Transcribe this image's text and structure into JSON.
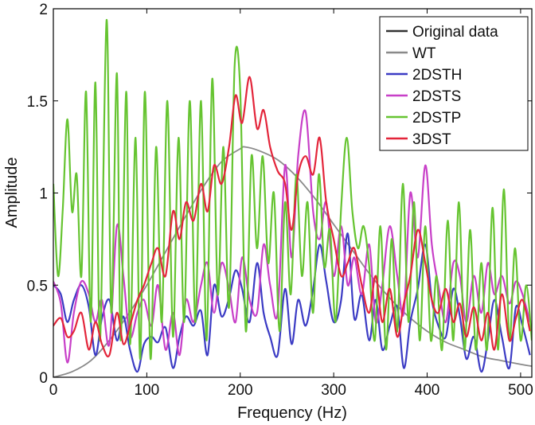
{
  "chart_data": {
    "type": "line",
    "title": "",
    "xlabel": "Frequency (Hz)",
    "ylabel": "Amplitude",
    "xlim": [
      0,
      512
    ],
    "ylim": [
      0,
      2
    ],
    "xticks": [
      0,
      100,
      200,
      300,
      400,
      500
    ],
    "yticks": [
      0,
      0.5,
      1,
      1.5,
      2
    ],
    "ytick_labels": [
      "0",
      "0.5",
      "1",
      "1.5",
      "2"
    ],
    "grid": false,
    "legend_position": "top-right",
    "series": [
      {
        "name": "Original data",
        "color": "#333333",
        "x": [],
        "y": []
      },
      {
        "name": "WT",
        "color": "#8a8a8a",
        "x": [
          0,
          20,
          40,
          60,
          80,
          100,
          120,
          140,
          160,
          180,
          200,
          205,
          220,
          240,
          260,
          280,
          300,
          320,
          340,
          360,
          380,
          400,
          420,
          440,
          460,
          480,
          500,
          512
        ],
        "y": [
          0.0,
          0.03,
          0.09,
          0.2,
          0.34,
          0.5,
          0.68,
          0.86,
          1.03,
          1.17,
          1.24,
          1.25,
          1.23,
          1.18,
          1.09,
          0.97,
          0.83,
          0.69,
          0.55,
          0.43,
          0.33,
          0.25,
          0.19,
          0.15,
          0.11,
          0.09,
          0.07,
          0.06
        ]
      },
      {
        "name": "2DSTH",
        "color": "#3b3bc4",
        "x": [
          0,
          8,
          15,
          22,
          30,
          38,
          45,
          52,
          60,
          68,
          75,
          82,
          90,
          97,
          105,
          112,
          120,
          128,
          135,
          142,
          150,
          158,
          165,
          172,
          180,
          188,
          195,
          202,
          210,
          218,
          225,
          232,
          240,
          248,
          255,
          262,
          270,
          278,
          285,
          292,
          300,
          308,
          315,
          322,
          330,
          338,
          345,
          352,
          360,
          368,
          375,
          382,
          390,
          398,
          405,
          412,
          420,
          428,
          435,
          442,
          450,
          458,
          465,
          472,
          480,
          488,
          495,
          502,
          510
        ],
        "y": [
          0.5,
          0.45,
          0.3,
          0.42,
          0.5,
          0.38,
          0.12,
          0.32,
          0.42,
          0.2,
          0.33,
          0.15,
          0.03,
          0.18,
          0.22,
          0.19,
          0.27,
          0.05,
          0.22,
          0.33,
          0.28,
          0.36,
          0.12,
          0.5,
          0.33,
          0.43,
          0.58,
          0.48,
          0.3,
          0.62,
          0.35,
          0.22,
          0.12,
          0.48,
          0.18,
          0.42,
          0.28,
          0.48,
          0.72,
          0.52,
          0.3,
          0.42,
          0.78,
          0.32,
          0.45,
          0.2,
          0.42,
          0.15,
          0.28,
          0.38,
          0.05,
          0.3,
          0.48,
          0.72,
          0.42,
          0.28,
          0.22,
          0.48,
          0.33,
          0.1,
          0.22,
          0.03,
          0.2,
          0.42,
          0.22,
          0.05,
          0.38,
          0.28,
          0.12
        ]
      },
      {
        "name": "2DSTS",
        "color": "#c840c8",
        "x": [
          0,
          8,
          15,
          22,
          30,
          38,
          45,
          52,
          60,
          68,
          75,
          82,
          90,
          97,
          105,
          112,
          120,
          128,
          135,
          142,
          150,
          158,
          165,
          172,
          180,
          188,
          195,
          202,
          210,
          218,
          225,
          232,
          240,
          248,
          255,
          262,
          270,
          278,
          285,
          292,
          300,
          308,
          315,
          322,
          330,
          338,
          345,
          352,
          360,
          368,
          375,
          382,
          390,
          398,
          405,
          412,
          420,
          428,
          435,
          442,
          450,
          458,
          465,
          472,
          480,
          488,
          495,
          502,
          510
        ],
        "y": [
          0.52,
          0.4,
          0.08,
          0.35,
          0.52,
          0.45,
          0.3,
          0.42,
          0.18,
          0.82,
          0.55,
          0.22,
          0.35,
          0.42,
          0.28,
          0.5,
          0.15,
          0.35,
          0.12,
          0.42,
          0.3,
          0.5,
          0.62,
          0.35,
          0.62,
          0.48,
          0.3,
          0.65,
          0.42,
          0.35,
          0.72,
          0.5,
          0.35,
          1.15,
          0.65,
          1.2,
          1.44,
          0.9,
          0.75,
          0.95,
          0.55,
          0.82,
          0.5,
          0.65,
          0.45,
          0.72,
          0.3,
          0.5,
          0.82,
          0.55,
          0.35,
          1.0,
          0.65,
          1.15,
          0.72,
          0.5,
          0.3,
          0.62,
          0.55,
          0.3,
          0.55,
          0.35,
          0.62,
          0.45,
          0.55,
          0.4,
          0.52,
          0.45,
          0.3
        ]
      },
      {
        "name": "2DSTP",
        "color": "#66c431",
        "x": [
          0,
          5,
          10,
          15,
          20,
          25,
          30,
          35,
          40,
          45,
          50,
          57,
          62,
          68,
          72,
          78,
          82,
          88,
          93,
          98,
          104,
          110,
          116,
          122,
          128,
          134,
          140,
          146,
          152,
          158,
          164,
          170,
          176,
          182,
          188,
          194,
          200,
          206,
          212,
          218,
          224,
          230,
          236,
          242,
          248,
          254,
          260,
          266,
          272,
          278,
          284,
          290,
          296,
          302,
          308,
          314,
          320,
          326,
          332,
          338,
          344,
          350,
          356,
          362,
          368,
          374,
          380,
          386,
          392,
          398,
          404,
          410,
          416,
          422,
          428,
          434,
          440,
          446,
          452,
          458,
          464,
          470,
          476,
          482,
          488,
          494,
          500,
          506,
          512
        ],
        "y": [
          1.05,
          0.55,
          0.9,
          1.4,
          0.9,
          1.1,
          0.55,
          1.55,
          0.3,
          1.6,
          0.2,
          1.94,
          0.35,
          1.65,
          0.2,
          1.55,
          0.18,
          1.3,
          0.1,
          1.55,
          0.1,
          1.25,
          0.3,
          1.5,
          0.22,
          1.3,
          0.3,
          1.5,
          0.3,
          1.5,
          0.2,
          1.62,
          0.45,
          1.25,
          0.38,
          1.69,
          1.55,
          0.25,
          1.2,
          0.7,
          1.2,
          0.62,
          1.0,
          0.25,
          0.95,
          0.45,
          1.1,
          0.55,
          0.95,
          0.35,
          1.1,
          0.6,
          0.8,
          0.3,
          0.92,
          1.3,
          0.9,
          0.7,
          0.82,
          0.6,
          0.2,
          0.82,
          0.15,
          0.75,
          0.25,
          1.05,
          0.3,
          0.95,
          0.2,
          0.82,
          0.2,
          0.55,
          0.15,
          0.85,
          0.2,
          0.95,
          0.15,
          0.8,
          0.15,
          0.62,
          0.15,
          0.92,
          0.15,
          1.02,
          0.2,
          0.7,
          0.2,
          0.5,
          0.2
        ]
      },
      {
        "name": "3DST",
        "color": "#e3253a",
        "x": [
          0,
          8,
          15,
          22,
          30,
          38,
          45,
          52,
          60,
          68,
          75,
          82,
          90,
          97,
          105,
          112,
          120,
          128,
          135,
          142,
          150,
          158,
          165,
          172,
          180,
          188,
          195,
          202,
          210,
          218,
          225,
          232,
          240,
          248,
          255,
          262,
          270,
          278,
          285,
          292,
          300,
          308,
          315,
          322,
          330,
          338,
          345,
          352,
          360,
          368,
          375,
          382,
          390,
          398,
          405,
          412,
          420,
          428,
          435,
          442,
          450,
          458,
          465,
          472,
          480,
          488,
          495,
          502,
          510
        ],
        "y": [
          0.28,
          0.32,
          0.22,
          0.25,
          0.35,
          0.15,
          0.3,
          0.18,
          0.12,
          0.35,
          0.18,
          0.28,
          0.42,
          0.5,
          0.62,
          0.7,
          0.55,
          0.9,
          0.75,
          0.95,
          0.85,
          1.05,
          0.9,
          1.15,
          1.05,
          1.25,
          1.53,
          1.38,
          1.63,
          1.35,
          1.45,
          1.25,
          1.12,
          1.05,
          0.8,
          1.1,
          1.2,
          1.1,
          1.3,
          0.95,
          0.75,
          0.55,
          0.62,
          0.7,
          0.5,
          0.35,
          0.55,
          0.3,
          0.48,
          0.22,
          0.4,
          0.55,
          0.8,
          0.62,
          0.42,
          0.35,
          0.48,
          0.3,
          0.4,
          0.22,
          0.38,
          0.2,
          0.35,
          0.15,
          0.45,
          0.2,
          0.32,
          0.42,
          0.25
        ]
      }
    ]
  }
}
